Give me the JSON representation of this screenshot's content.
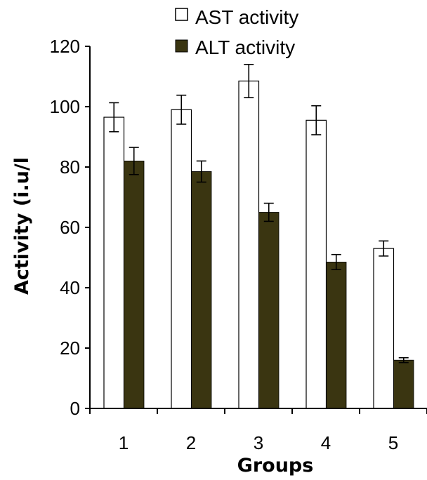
{
  "chart_data": {
    "type": "bar",
    "categories": [
      "1",
      "2",
      "3",
      "4",
      "5"
    ],
    "series": [
      {
        "name": "AST activity",
        "values": [
          96.5,
          99,
          108.5,
          95.5,
          53
        ],
        "errors": [
          4.8,
          4.8,
          5.5,
          4.8,
          2.5
        ],
        "color": "#ffffff"
      },
      {
        "name": "ALT activity",
        "values": [
          82,
          78.5,
          65,
          48.5,
          16
        ],
        "errors": [
          4.5,
          3.5,
          3.0,
          2.5,
          0.8
        ],
        "color": "#3a3511"
      }
    ],
    "xlabel": "Groups",
    "ylabel": "Activity (i.u/l",
    "ylim": [
      0,
      120
    ],
    "yticks": [
      "0",
      "20",
      "40",
      "60",
      "80",
      "100",
      "120"
    ],
    "legend_position": "top",
    "grid": false
  }
}
